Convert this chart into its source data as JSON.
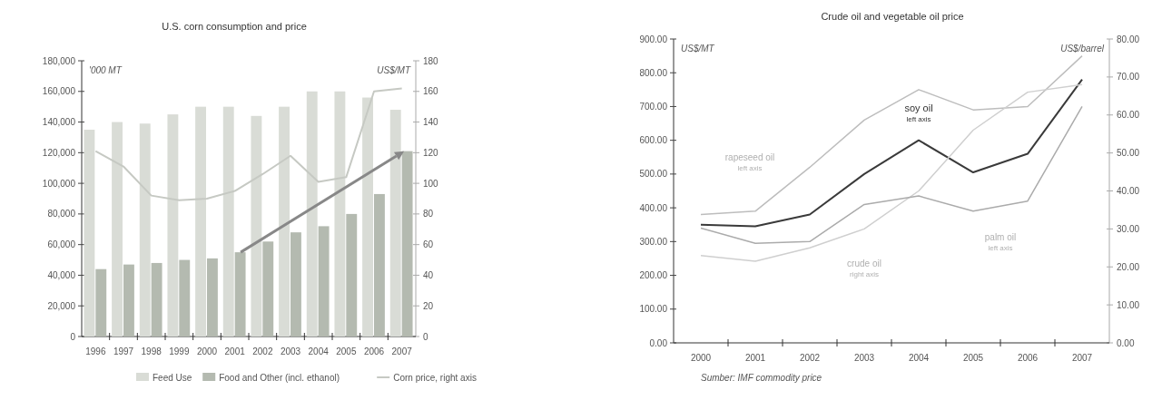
{
  "chart_data": [
    {
      "type": "bar",
      "title": "U.S. corn consumption and price",
      "ylabel": "'000 MT",
      "y2label": "US$/MT",
      "categories": [
        "1996",
        "1997",
        "1998",
        "1999",
        "2000",
        "2001",
        "2002",
        "2003",
        "2004",
        "2005",
        "2006",
        "2007"
      ],
      "series": [
        {
          "name": "Feed Use",
          "color": "#d9dcd6",
          "values": [
            135000,
            140000,
            139000,
            145000,
            150000,
            150000,
            144000,
            150000,
            160000,
            160000,
            156000,
            148000
          ]
        },
        {
          "name": "Food and Other (incl. ethanol)",
          "color": "#b4bab0",
          "values": [
            44000,
            47000,
            48000,
            50000,
            51000,
            55000,
            62000,
            68000,
            72000,
            80000,
            93000,
            121000
          ]
        },
        {
          "name": "Corn price, right axis",
          "type": "line",
          "axis": "y2",
          "color": "#c6c9c3",
          "values": [
            121,
            111,
            92,
            89,
            90,
            95,
            106,
            118,
            101,
            104,
            160,
            162
          ]
        }
      ],
      "ylim": [
        0,
        180000
      ],
      "yticks": [
        {
          "value": 0,
          "label": "0"
        },
        {
          "value": 20000,
          "label": "20,000"
        },
        {
          "value": 40000,
          "label": "40,000"
        },
        {
          "value": 60000,
          "label": "60,000"
        },
        {
          "value": 80000,
          "label": "80,000"
        },
        {
          "value": 100000,
          "label": "100,000"
        },
        {
          "value": 120000,
          "label": "120,000"
        },
        {
          "value": 140000,
          "label": "140,000"
        },
        {
          "value": 160000,
          "label": "160,000"
        },
        {
          "value": 180000,
          "label": "180,000"
        }
      ],
      "y2lim": [
        0,
        180
      ],
      "y2ticks": [
        0,
        20,
        40,
        60,
        80,
        100,
        120,
        140,
        160,
        180
      ],
      "legend": "bottom",
      "marker": "none"
    },
    {
      "type": "line",
      "title": "Crude oil and vegetable oil price",
      "ylabel": "US$/MT",
      "y2label": "US$/barrel",
      "categories": [
        "2000",
        "2001",
        "2002",
        "2003",
        "2004",
        "2005",
        "2006",
        "2007"
      ],
      "series": [
        {
          "name": "rapeseed oil",
          "color": "#bdbdbd",
          "values": [
            380,
            390,
            520,
            660,
            750,
            690,
            700,
            850
          ]
        },
        {
          "name": "soy oil",
          "color": "#3a3a3a",
          "values": [
            350,
            345,
            380,
            500,
            600,
            505,
            560,
            780
          ]
        },
        {
          "name": "crude oil",
          "axis": "y2",
          "color": "#cfcfcf",
          "values": [
            23,
            21.5,
            25,
            30,
            40,
            56,
            66,
            68
          ]
        },
        {
          "name": "palm oil",
          "color": "#ababab",
          "values": [
            340,
            295,
            300,
            410,
            435,
            390,
            420,
            700
          ]
        }
      ],
      "ylim": [
        0,
        900
      ],
      "yticks": [
        {
          "value": 0,
          "label": "0.00"
        },
        {
          "value": 100,
          "label": "100.00"
        },
        {
          "value": 200,
          "label": "200.00"
        },
        {
          "value": 300,
          "label": "300.00"
        },
        {
          "value": 400,
          "label": "400.00"
        },
        {
          "value": 500,
          "label": "500.00"
        },
        {
          "value": 600,
          "label": "600.00"
        },
        {
          "value": 700,
          "label": "700.00"
        },
        {
          "value": 800,
          "label": "800.00"
        },
        {
          "value": 900,
          "label": "900.00"
        }
      ],
      "y2lim": [
        0,
        80
      ],
      "y2ticks": [
        {
          "value": 0,
          "label": "0.00"
        },
        {
          "value": 10,
          "label": "10.00"
        },
        {
          "value": 20,
          "label": "20.00"
        },
        {
          "value": 30,
          "label": "30.00"
        },
        {
          "value": 40,
          "label": "40.00"
        },
        {
          "value": 50,
          "label": "50.00"
        },
        {
          "value": 60,
          "label": "60.00"
        },
        {
          "value": 70,
          "label": "70.00"
        },
        {
          "value": 80,
          "label": "80.00"
        }
      ],
      "annotations": [
        "left axis",
        "left axis",
        "right axis",
        "left axis",
        "Sumber: IMF commodity price"
      ],
      "marker": "none"
    }
  ]
}
